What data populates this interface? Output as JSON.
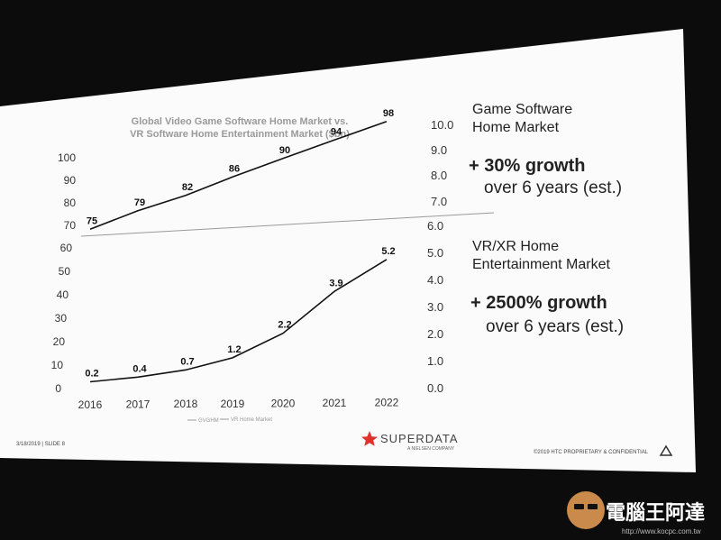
{
  "chart_data": [
    {
      "type": "line",
      "title": [
        "Global Video Game Software Home Market vs.",
        "VR Software Home Entertainment Market ($bn)"
      ],
      "x": [
        "2016",
        "2017",
        "2018",
        "2019",
        "2020",
        "2021",
        "2022"
      ],
      "series": [
        {
          "values": [
            75,
            79,
            82,
            86,
            90,
            94,
            98
          ]
        }
      ],
      "ylim": [
        70,
        100
      ],
      "yticks": [
        "70",
        "80",
        "90",
        "100"
      ],
      "right_ticks": [
        "7.0",
        "8.0",
        "9.0",
        "10.0"
      ],
      "grid": false
    },
    {
      "type": "line",
      "x": [
        "2016",
        "2017",
        "2018",
        "2019",
        "2020",
        "2021",
        "2022"
      ],
      "series": [
        {
          "values": [
            0.2,
            0.4,
            0.7,
            1.2,
            2.2,
            3.9,
            5.2
          ]
        }
      ],
      "ylim": [
        0,
        6
      ],
      "yticks": [
        "0",
        "10",
        "20",
        "30",
        "40",
        "50",
        "60"
      ],
      "right_ticks": [
        "0.0",
        "1.0",
        "2.0",
        "3.0",
        "4.0",
        "5.0",
        "6.0"
      ],
      "legend": [
        "GVGHM",
        "VR Home Market"
      ],
      "legend_position": "bottom",
      "grid": false
    }
  ],
  "side": {
    "game_heading": [
      "Game Software",
      "Home Market"
    ],
    "game_growth": "+ 30% growth",
    "game_sub": "over 6 years (est.)",
    "vr_heading": [
      "VR/XR Home",
      "Entertainment Market"
    ],
    "vr_growth": "+ 2500% growth",
    "vr_sub": "over 6 years (est.)"
  },
  "footer": {
    "left": "3/18/2019 | SLIDE 8",
    "right": "©2019 HTC PROPRIETARY & CONFIDENTIAL",
    "brand": "SUPERDATA",
    "brand_sub": "A NIELSEN COMPANY"
  },
  "watermark": {
    "text": "電腦王阿達",
    "url": "http://www.kocpc.com.tw"
  },
  "colors": {
    "brand_star": "#e0322c",
    "line": "#111111",
    "divider": "#9a9a9a"
  }
}
